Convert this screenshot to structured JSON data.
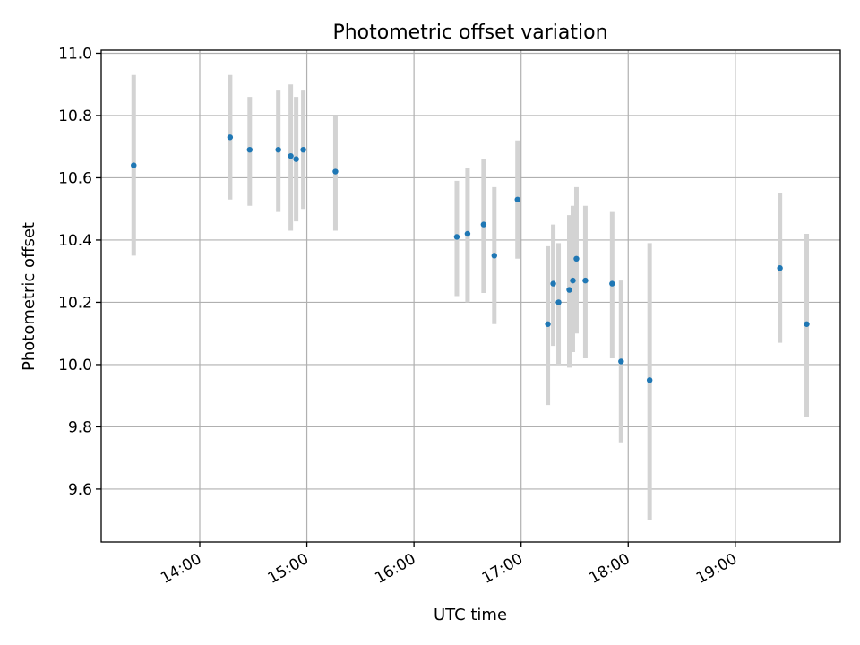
{
  "chart_data": {
    "type": "scatter",
    "title": "Photometric offset variation",
    "xlabel": "UTC time",
    "ylabel": "Photometric offset",
    "x_unit": "hours UTC",
    "xlim": [
      13.08,
      19.98
    ],
    "ylim": [
      9.43,
      11.01
    ],
    "x_ticks": [
      {
        "value": 14,
        "label": "14:00"
      },
      {
        "value": 15,
        "label": "15:00"
      },
      {
        "value": 16,
        "label": "16:00"
      },
      {
        "value": 17,
        "label": "17:00"
      },
      {
        "value": 18,
        "label": "18:00"
      },
      {
        "value": 19,
        "label": "19:00"
      }
    ],
    "y_ticks": [
      {
        "value": 9.6,
        "label": "9.6"
      },
      {
        "value": 9.8,
        "label": "9.8"
      },
      {
        "value": 10.0,
        "label": "10.0"
      },
      {
        "value": 10.2,
        "label": "10.2"
      },
      {
        "value": 10.4,
        "label": "10.4"
      },
      {
        "value": 10.6,
        "label": "10.6"
      },
      {
        "value": 10.8,
        "label": "10.8"
      },
      {
        "value": 11.0,
        "label": "11.0"
      }
    ],
    "grid": true,
    "point_color": "#1f77b4",
    "errorbar_color": "#d3d3d3",
    "points": [
      {
        "x": "13:23",
        "y": 10.64,
        "lo": 10.35,
        "hi": 10.93
      },
      {
        "x": "14:17",
        "y": 10.73,
        "lo": 10.53,
        "hi": 10.93
      },
      {
        "x": "14:28",
        "y": 10.69,
        "lo": 10.51,
        "hi": 10.86
      },
      {
        "x": "14:44",
        "y": 10.69,
        "lo": 10.49,
        "hi": 10.88
      },
      {
        "x": "14:51",
        "y": 10.67,
        "lo": 10.43,
        "hi": 10.9
      },
      {
        "x": "14:54",
        "y": 10.66,
        "lo": 10.46,
        "hi": 10.86
      },
      {
        "x": "14:58",
        "y": 10.69,
        "lo": 10.5,
        "hi": 10.88
      },
      {
        "x": "15:16",
        "y": 10.62,
        "lo": 10.43,
        "hi": 10.8
      },
      {
        "x": "16:24",
        "y": 10.41,
        "lo": 10.22,
        "hi": 10.59
      },
      {
        "x": "16:30",
        "y": 10.42,
        "lo": 10.2,
        "hi": 10.63
      },
      {
        "x": "16:39",
        "y": 10.45,
        "lo": 10.23,
        "hi": 10.66
      },
      {
        "x": "16:45",
        "y": 10.35,
        "lo": 10.13,
        "hi": 10.57
      },
      {
        "x": "16:58",
        "y": 10.53,
        "lo": 10.34,
        "hi": 10.72
      },
      {
        "x": "17:15",
        "y": 10.13,
        "lo": 9.87,
        "hi": 10.38
      },
      {
        "x": "17:18",
        "y": 10.26,
        "lo": 10.06,
        "hi": 10.45
      },
      {
        "x": "17:21",
        "y": 10.2,
        "lo": 10.0,
        "hi": 10.39
      },
      {
        "x": "17:27",
        "y": 10.24,
        "lo": 9.99,
        "hi": 10.48
      },
      {
        "x": "17:29",
        "y": 10.27,
        "lo": 10.04,
        "hi": 10.51
      },
      {
        "x": "17:31",
        "y": 10.34,
        "lo": 10.1,
        "hi": 10.57
      },
      {
        "x": "17:36",
        "y": 10.27,
        "lo": 10.02,
        "hi": 10.51
      },
      {
        "x": "17:51",
        "y": 10.26,
        "lo": 10.02,
        "hi": 10.49
      },
      {
        "x": "17:56",
        "y": 10.01,
        "lo": 9.75,
        "hi": 10.27
      },
      {
        "x": "18:12",
        "y": 9.95,
        "lo": 9.5,
        "hi": 10.39
      },
      {
        "x": "19:25",
        "y": 10.31,
        "lo": 10.07,
        "hi": 10.55
      },
      {
        "x": "19:40",
        "y": 10.13,
        "lo": 9.83,
        "hi": 10.42
      }
    ]
  }
}
